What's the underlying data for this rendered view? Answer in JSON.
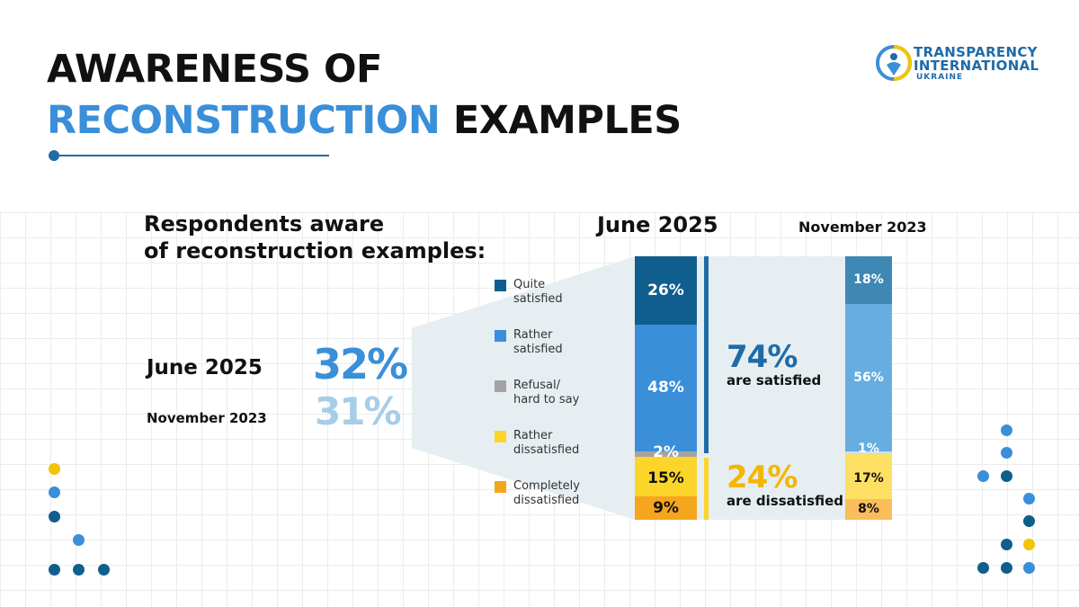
{
  "title": {
    "line1": "AWARENESS OF",
    "line2_accent": "RECONSTRUCTION",
    "line2_rest": "EXAMPLES"
  },
  "logo": {
    "line1": "TRANSPARENCY",
    "line2": "INTERNATIONAL",
    "line3": "UKRAINE"
  },
  "subtitle": {
    "line1": "Respondents aware",
    "line2": "of reconstruction examples:"
  },
  "awareness": {
    "june_label": "June 2025",
    "june_value": "32%",
    "nov_label": "November 2023",
    "nov_value": "31%"
  },
  "colors": {
    "quite": "#0f5e8e",
    "rather": "#3a8fd8",
    "refusal": "#a3a3a3",
    "rather_dis": "#fcd52b",
    "completely_dis": "#f6a61c",
    "nov_quite": "#3f88b3",
    "nov_rather": "#66aee0",
    "nov_refusal": "#c9dff0",
    "nov_rather_dis": "#fde063",
    "nov_completely_dis": "#f9be5b",
    "accent_blue": "#3a8fd8",
    "dark_blue": "#1f6ba8",
    "yellow": "#f2c400"
  },
  "chart_data": {
    "type": "bar",
    "stacked": true,
    "orientation": "vertical",
    "categories": [
      "June 2025",
      "November 2023"
    ],
    "series": [
      {
        "name": "Quite satisfied",
        "values": [
          26,
          18
        ],
        "labels": [
          "26%",
          "18%"
        ]
      },
      {
        "name": "Rather satisfied",
        "values": [
          48,
          56
        ],
        "labels": [
          "48%",
          "56%"
        ]
      },
      {
        "name": "Refusal/ hard to say",
        "values": [
          2,
          1
        ],
        "labels": [
          "2%",
          "1%"
        ]
      },
      {
        "name": "Rather dissatisfied",
        "values": [
          15,
          17
        ],
        "labels": [
          "15%",
          "17%"
        ]
      },
      {
        "name": "Completely dissatisfied",
        "values": [
          9,
          8
        ],
        "labels": [
          "9%",
          "8%"
        ]
      }
    ],
    "legend": [
      {
        "line1": "Quite",
        "line2": "satisfied"
      },
      {
        "line1": "Rather",
        "line2": "satisfied"
      },
      {
        "line1": "Refusal/",
        "line2": "hard to say"
      },
      {
        "line1": "Rather",
        "line2": "dissatisfied"
      },
      {
        "line1": "Completely",
        "line2": "dissatisfied"
      }
    ],
    "legend_position": "left",
    "summary": {
      "satisfied_pct": "74%",
      "satisfied_text": "are satisfied",
      "dissatisfied_pct": "24%",
      "dissatisfied_text": "are dissatisfied"
    },
    "ylim": [
      0,
      100
    ],
    "grid": false
  }
}
